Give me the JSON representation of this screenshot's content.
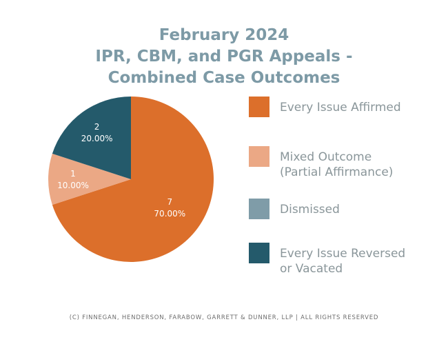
{
  "title_lines": [
    "February 2024",
    "IPR, CBM, and PGR Appeals -",
    "Combined Case Outcomes"
  ],
  "chart_data": {
    "type": "pie",
    "title": "February 2024 IPR, CBM, and PGR Appeals - Combined Case Outcomes",
    "slices": [
      {
        "name": "Every Issue Affirmed",
        "value": 7,
        "percent": "70.00%",
        "color": "#dc6f2b"
      },
      {
        "name": "Mixed Outcome (Partial Affirmance)",
        "value": 1,
        "percent": "10.00%",
        "color": "#eba885"
      },
      {
        "name": "Dismissed",
        "value": 0,
        "percent": "0.00%",
        "color": "#7f9ca8"
      },
      {
        "name": "Every Issue Reversed or Vacated",
        "value": 2,
        "percent": "20.00%",
        "color": "#245a6b"
      }
    ],
    "legend_position": "right"
  },
  "legend": [
    {
      "lines": [
        "Every Issue Affirmed"
      ],
      "color": "#dc6f2b"
    },
    {
      "lines": [
        "Mixed Outcome",
        "(Partial Affirmance)"
      ],
      "color": "#eba885"
    },
    {
      "lines": [
        "Dismissed"
      ],
      "color": "#7f9ca8"
    },
    {
      "lines": [
        "Every Issue Reversed",
        "or Vacated"
      ],
      "color": "#245a6b"
    }
  ],
  "footer": "(C) FINNEGAN, HENDERSON, FARABOW, GARRETT & DUNNER, LLP | ALL RIGHTS RESERVED"
}
